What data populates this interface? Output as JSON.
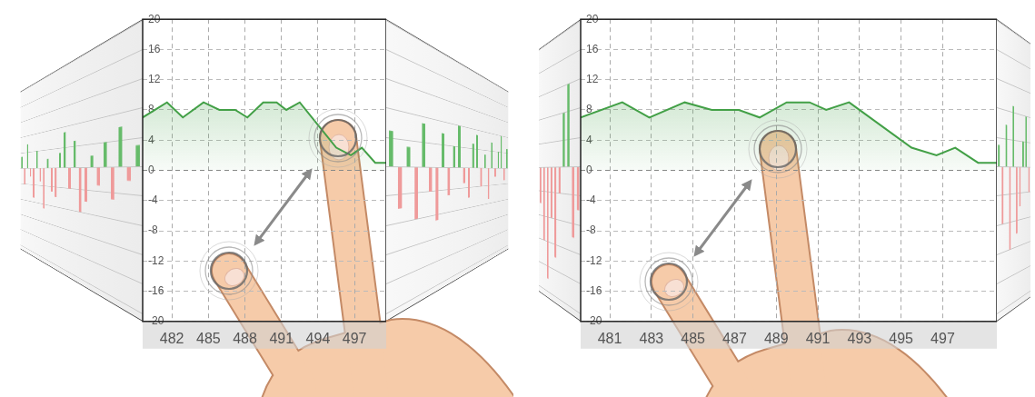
{
  "chart_data": [
    {
      "type": "bar",
      "categories": [
        null,
        null,
        null,
        null,
        null,
        null,
        null,
        null,
        null,
        null,
        null,
        null,
        null,
        null,
        null,
        null,
        null,
        null,
        null,
        null,
        null,
        null,
        null,
        null
      ],
      "values": [
        3,
        -4,
        6,
        -2,
        -7,
        4,
        -3,
        -9,
        2,
        -5,
        -6,
        3,
        7,
        -4,
        5,
        -8,
        -6,
        2,
        -3,
        4,
        -5,
        6,
        -2,
        3
      ],
      "colors": [
        "#66bb6a",
        "#ef9a9a",
        "#66bb6a",
        "#ef9a9a",
        "#ef9a9a",
        "#66bb6a",
        "#ef9a9a",
        "#ef9a9a",
        "#66bb6a",
        "#ef9a9a",
        "#ef9a9a",
        "#66bb6a",
        "#66bb6a",
        "#ef9a9a",
        "#66bb6a",
        "#ef9a9a",
        "#ef9a9a",
        "#66bb6a",
        "#ef9a9a",
        "#66bb6a",
        "#ef9a9a",
        "#66bb6a",
        "#ef9a9a",
        "#66bb6a"
      ],
      "ylim": [
        -20,
        20
      ],
      "yticks": [
        -20,
        -16,
        -12,
        -8,
        -4,
        0,
        4,
        8,
        12,
        16,
        20
      ],
      "grid": true,
      "tick_labels": false
    },
    {
      "type": "line",
      "x": [
        479.6,
        481.6,
        482.9,
        484.6,
        485.9,
        487.2,
        488.2,
        489.5,
        490.6,
        491.4,
        492.5,
        494,
        495.5,
        496.7,
        497.6,
        498.7,
        499.6
      ],
      "values": [
        7,
        9,
        7,
        9,
        8,
        8,
        7,
        9,
        9,
        8,
        9,
        6,
        3,
        2,
        3,
        1,
        1
      ],
      "color": "#43a047",
      "xlim": [
        479.6,
        499.6
      ],
      "xticks": [
        482,
        485,
        488,
        491,
        494,
        497
      ],
      "ylim": [
        -20,
        20
      ],
      "yticks": [
        -20,
        -16,
        -12,
        -8,
        -4,
        0,
        4,
        8,
        12,
        16,
        20
      ],
      "grid": true
    },
    {
      "type": "bar",
      "categories": [
        null,
        null,
        null,
        null,
        null,
        null,
        null,
        null,
        null,
        null,
        null,
        null,
        null,
        null,
        null,
        null,
        null,
        null,
        null,
        null,
        null,
        null,
        null,
        null
      ],
      "values": [
        5,
        -6,
        3,
        -8,
        7,
        -4,
        -9,
        6,
        -5,
        4,
        8,
        -3,
        -6,
        5,
        7,
        -4,
        3,
        -7,
        6,
        -2,
        4,
        8,
        -3,
        5
      ],
      "colors": [
        "#66bb6a",
        "#ef9a9a",
        "#66bb6a",
        "#ef9a9a",
        "#66bb6a",
        "#ef9a9a",
        "#ef9a9a",
        "#66bb6a",
        "#ef9a9a",
        "#66bb6a",
        "#66bb6a",
        "#ef9a9a",
        "#ef9a9a",
        "#66bb6a",
        "#66bb6a",
        "#ef9a9a",
        "#66bb6a",
        "#ef9a9a",
        "#66bb6a",
        "#ef9a9a",
        "#66bb6a",
        "#66bb6a",
        "#ef9a9a",
        "#66bb6a"
      ],
      "ylim": [
        -20,
        20
      ],
      "yticks": [
        -20,
        -16,
        -12,
        -8,
        -4,
        0,
        4,
        8,
        12,
        16,
        20
      ],
      "grid": true,
      "tick_labels": false
    },
    {
      "type": "bar",
      "categories": [
        null,
        null,
        null,
        null,
        null,
        null,
        null,
        null,
        null,
        null
      ],
      "values": [
        -6,
        -12,
        -18,
        -8,
        -14,
        -4,
        8,
        12,
        -10,
        -6
      ],
      "colors": [
        "#ef9a9a",
        "#ef9a9a",
        "#ef9a9a",
        "#ef9a9a",
        "#ef9a9a",
        "#ef9a9a",
        "#66bb6a",
        "#66bb6a",
        "#ef9a9a",
        "#ef9a9a"
      ],
      "ylim": [
        -20,
        20
      ],
      "yticks": [
        -20,
        -16,
        -12,
        -8,
        -4,
        0,
        4,
        8,
        12,
        16,
        20
      ],
      "grid": true,
      "tick_labels": false
    },
    {
      "type": "line",
      "x": [
        479.6,
        481.6,
        482.9,
        484.6,
        485.9,
        487.2,
        488.2,
        489.5,
        490.6,
        491.4,
        492.5,
        494,
        495.5,
        496.7,
        497.6,
        498.7,
        499.6
      ],
      "values": [
        7,
        9,
        7,
        9,
        8,
        8,
        7,
        9,
        9,
        8,
        9,
        6,
        3,
        2,
        3,
        1,
        1
      ],
      "color": "#43a047",
      "xlim": [
        479.6,
        499.6
      ],
      "xticks": [
        481,
        483,
        485,
        487,
        489,
        491,
        493,
        495,
        497
      ],
      "ylim": [
        -20,
        20
      ],
      "yticks": [
        -20,
        -16,
        -12,
        -8,
        -4,
        0,
        4,
        8,
        12,
        16,
        20
      ],
      "grid": true
    },
    {
      "type": "bar",
      "categories": [
        null,
        null,
        null,
        null,
        null,
        null,
        null,
        null,
        null,
        null
      ],
      "values": [
        3,
        -8,
        6,
        -12,
        9,
        -10,
        -6,
        4,
        8,
        -4
      ],
      "colors": [
        "#66bb6a",
        "#ef9a9a",
        "#66bb6a",
        "#ef9a9a",
        "#66bb6a",
        "#ef9a9a",
        "#ef9a9a",
        "#66bb6a",
        "#66bb6a",
        "#ef9a9a"
      ],
      "ylim": [
        -20,
        20
      ],
      "yticks": [
        -20,
        -16,
        -12,
        -8,
        -4,
        0,
        4,
        8,
        12,
        16,
        20
      ],
      "grid": true,
      "tick_labels": false
    }
  ]
}
